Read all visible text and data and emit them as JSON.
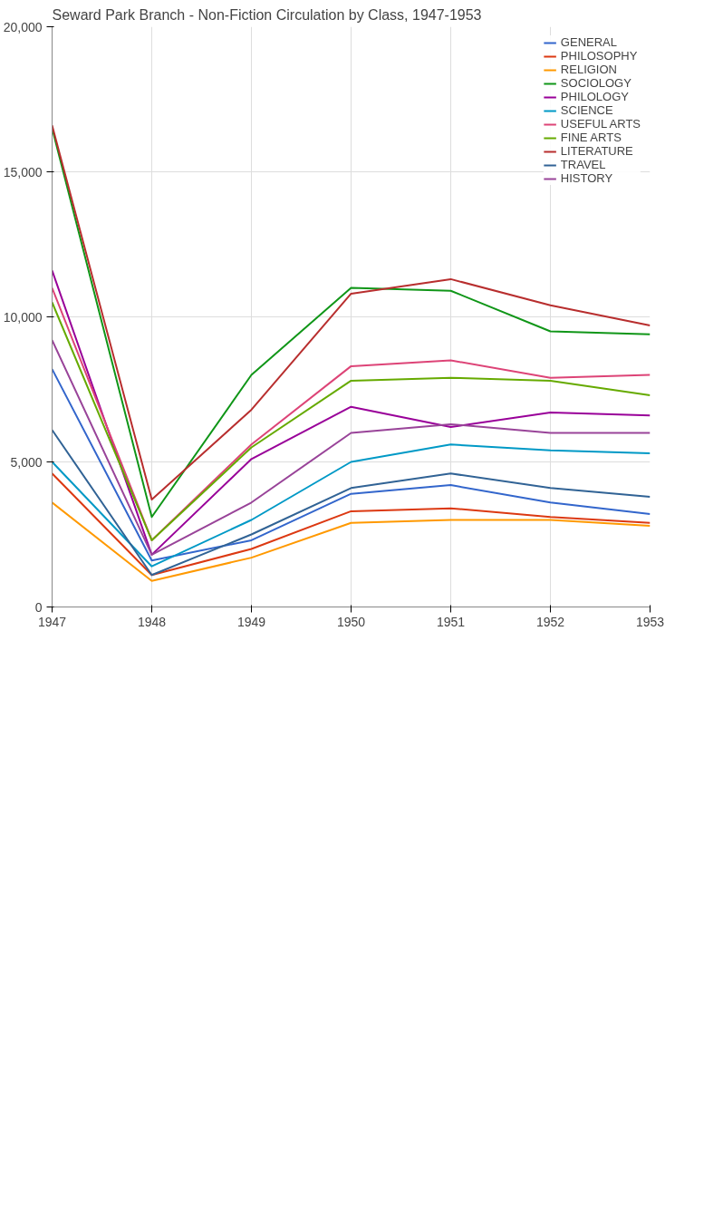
{
  "chart_data": {
    "type": "line",
    "title": "Seward Park Branch - Non-Fiction Circulation by Class, 1947-1953",
    "x": [
      1947,
      1948,
      1949,
      1950,
      1951,
      1952,
      1953
    ],
    "xlim": [
      1947,
      1953
    ],
    "xticks": [
      1947,
      1948,
      1949,
      1950,
      1951,
      1952,
      1953
    ],
    "ylim": [
      0,
      20000
    ],
    "yticks": [
      {
        "value": 0,
        "label": "0"
      },
      {
        "value": 5000,
        "label": "5,000"
      },
      {
        "value": 10000,
        "label": "10,000"
      },
      {
        "value": 15000,
        "label": "15,000"
      },
      {
        "value": 20000,
        "label": "20,000"
      }
    ],
    "grid": true,
    "legend": "top right",
    "marker": "none",
    "line_style": "solid",
    "series": [
      {
        "name": "GENERAL",
        "color": "#3366cc",
        "values": [
          8200,
          1600,
          2300,
          3900,
          4200,
          3600,
          3200
        ]
      },
      {
        "name": "PHILOSOPHY",
        "color": "#dc3912",
        "values": [
          4600,
          1100,
          2000,
          3300,
          3400,
          3100,
          2900
        ]
      },
      {
        "name": "RELIGION",
        "color": "#ff9900",
        "values": [
          3600,
          900,
          1700,
          2900,
          3000,
          3000,
          2800
        ]
      },
      {
        "name": "SOCIOLOGY",
        "color": "#109618",
        "values": [
          16500,
          3100,
          8000,
          11000,
          10900,
          9500,
          9400
        ]
      },
      {
        "name": "PHILOLOGY",
        "color": "#990099",
        "values": [
          11600,
          1800,
          5100,
          6900,
          6200,
          6700,
          6600
        ]
      },
      {
        "name": "SCIENCE",
        "color": "#0099c6",
        "values": [
          5000,
          1400,
          3000,
          5000,
          5600,
          5400,
          5300
        ]
      },
      {
        "name": "USEFUL ARTS",
        "color": "#dd4477",
        "values": [
          11000,
          2300,
          5600,
          8300,
          8500,
          7900,
          8000
        ]
      },
      {
        "name": "FINE ARTS",
        "color": "#66aa00",
        "values": [
          10500,
          2300,
          5500,
          7800,
          7900,
          7800,
          7300
        ]
      },
      {
        "name": "LITERATURE",
        "color": "#b82e2e",
        "values": [
          16600,
          3700,
          6800,
          10800,
          11300,
          10400,
          9700
        ]
      },
      {
        "name": "TRAVEL",
        "color": "#316395",
        "values": [
          6100,
          1100,
          2500,
          4100,
          4600,
          4100,
          3800
        ]
      },
      {
        "name": "HISTORY",
        "color": "#994499",
        "values": [
          9200,
          1800,
          3600,
          6000,
          6300,
          6000,
          6000
        ]
      }
    ]
  }
}
